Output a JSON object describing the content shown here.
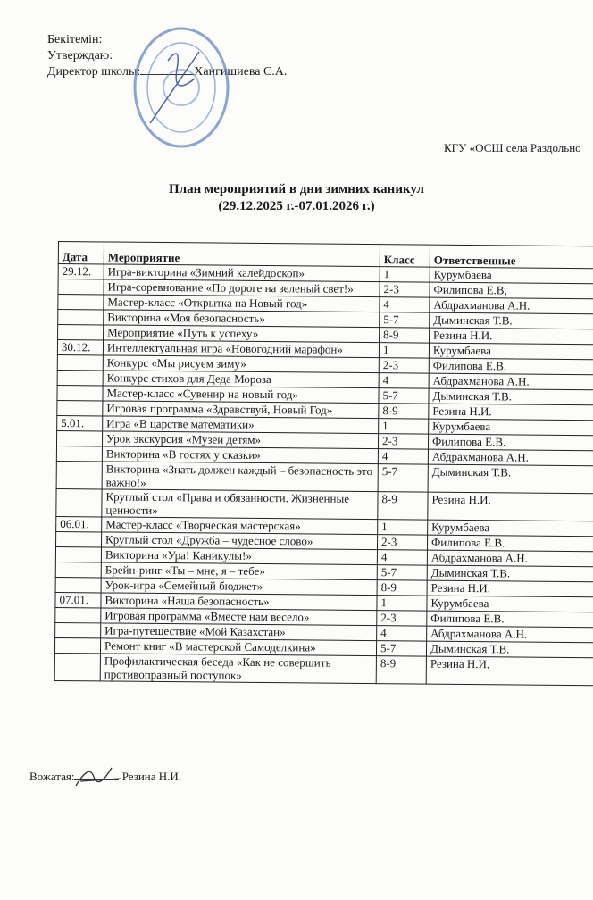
{
  "approval": {
    "line1": "Бекітемін:",
    "line2": "Утверждаю:",
    "line3": "Директор школы:",
    "signatory": "Хангишиева С.А."
  },
  "organization": "КГУ «ОСШ села Раздольно",
  "title": {
    "line1": "План мероприятий в дни зимних каникул",
    "line2": "(29.12.2025 г.-07.01.2026 г.)"
  },
  "table": {
    "headers": [
      "Дата",
      "Мероприятие",
      "Класс",
      "Ответственные"
    ],
    "rows": [
      [
        "29.12.",
        "Игра-викторина «Зимний калейдоскоп»",
        "1",
        "Курумбаева"
      ],
      [
        "",
        "Игра-соревнование «По дороге на зеленый свет!»",
        "2-3",
        "Филипова Е.В,"
      ],
      [
        "",
        "Мастер-класс «Открытка на Новый год»",
        "4",
        "Абдрахманова А.Н."
      ],
      [
        "",
        "Викторина «Моя безопасность»",
        "5-7",
        "Дыминская Т.В."
      ],
      [
        "",
        "Мероприятие «Путь к успеху»",
        "8-9",
        "Резина Н.И."
      ],
      [
        "30.12.",
        "Интеллектуальная игра «Новогодний марафон»",
        "1",
        "Курумбаева"
      ],
      [
        "",
        "Конкурс «Мы рисуем зиму»",
        "2-3",
        "Филипова Е.В."
      ],
      [
        "",
        "Конкурс стихов для Деда Мороза",
        "4",
        "Абдрахманова А.Н."
      ],
      [
        "",
        "Мастер-класс «Сувенир на новый год»",
        "5-7",
        "Дыминская Т.В."
      ],
      [
        "",
        "Игровая программа «Здравствуй, Новый Год»",
        "8-9",
        "Резина Н.И."
      ],
      [
        "5.01.",
        "Игра «В царстве математики»",
        "1",
        "Курумбаева"
      ],
      [
        "",
        "Урок экскурсия «Музеи детям»",
        "2-3",
        "Филипова Е.В."
      ],
      [
        "",
        "Викторина «В гостях у сказки»",
        "4",
        "Абдрахманова А.Н."
      ],
      [
        "",
        "Викторина «Знать должен каждый – безопасность это важно!»",
        "5-7",
        "Дыминская Т.В."
      ],
      [
        "",
        "Круглый стол «Права и обязанности. Жизненные ценности»",
        "8-9",
        "Резина Н.И."
      ],
      [
        "06.01.",
        "Мастер-класс «Творческая мастерская»",
        "1",
        "Курумбаева"
      ],
      [
        "",
        "Круглый стол «Дружба – чудесное слово»",
        "2-3",
        "Филипова Е.В."
      ],
      [
        "",
        "Викторина «Ура! Каникулы!»",
        "4",
        "Абдрахманова А.Н."
      ],
      [
        "",
        "Брейн-ринг «Ты – мне, я – тебе»",
        "5-7",
        "Дыминская Т.В."
      ],
      [
        "",
        "Урок-игра «Семейный бюджет»",
        "8-9",
        "Резина Н.И."
      ],
      [
        "07.01.",
        "Викторина «Наша безопасность»",
        "1",
        "Курумбаева"
      ],
      [
        "",
        "Игровая программа «Вместе нам весело»",
        "2-3",
        "Филипова Е.В."
      ],
      [
        "",
        "Игра-путешествие «Мой Казахстан»",
        "4",
        "Абдрахманова А.Н."
      ],
      [
        "",
        "Ремонт книг «В мастерской Самоделкина»",
        "5-7",
        "Дыминская Т.В."
      ],
      [
        "",
        "Профилактическая беседа «Как не совершить противоправный поступок»",
        "8-9",
        "Резина Н.И."
      ]
    ]
  },
  "footer": {
    "label": "Вожатая:",
    "name": "Резина Н.И."
  },
  "colors": {
    "stamp": "#5b7fc0",
    "ink": "#1a1a1a"
  }
}
